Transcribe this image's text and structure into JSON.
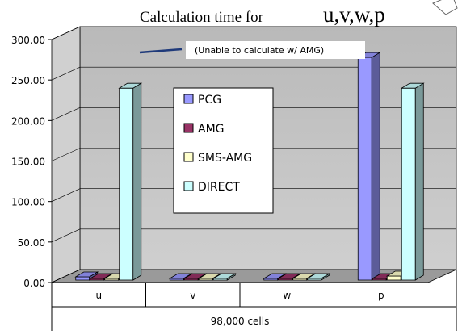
{
  "chart_data": {
    "type": "bar",
    "title": "Calculation time for u,v,w,p",
    "categories": [
      "u",
      "v",
      "w",
      "p"
    ],
    "group_label": "98,000 cells",
    "series": [
      {
        "name": "PCG",
        "values": [
          4,
          2,
          2,
          275
        ],
        "color": "#9999FF"
      },
      {
        "name": "AMG",
        "values": [
          2,
          2,
          2,
          2
        ],
        "color": "#993366"
      },
      {
        "name": "SMS-AMG",
        "values": [
          2,
          2,
          2,
          5
        ],
        "color": "#FFFFCC"
      },
      {
        "name": "DIRECT",
        "values": [
          237,
          2,
          2,
          237
        ],
        "color": "#CCFFFF"
      }
    ],
    "ylim": [
      0,
      300
    ],
    "yticks": [
      "0.00",
      "50.00",
      "100.00",
      "150.00",
      "200.00",
      "250.00",
      "300.00"
    ],
    "grid": true,
    "legend_position": "center-left",
    "annotation": "(Unable to calculate w/ AMG)"
  }
}
